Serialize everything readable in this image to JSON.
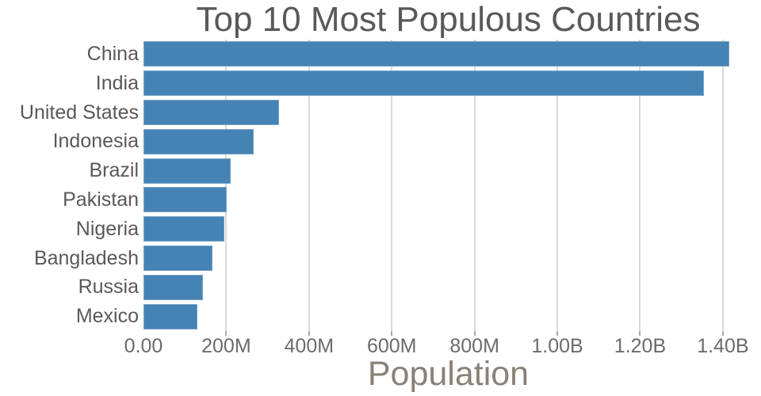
{
  "chart": {
    "title": "Top 10 Most Populous Countries",
    "xlabel": "Population",
    "colors": {
      "bar": "#4683b5",
      "gridline": "#d9d9d9",
      "title_text": "#58595a",
      "category_text": "#57595a",
      "tick_text": "#6b6b6b",
      "xlabel_text": "#8a8177",
      "background": "#ffffff"
    }
  },
  "chart_data": {
    "type": "bar",
    "orientation": "horizontal",
    "title": "Top 10 Most Populous Countries",
    "xlabel": "Population",
    "ylabel": "",
    "grid": true,
    "legend": false,
    "categories": [
      "China",
      "India",
      "United States",
      "Indonesia",
      "Brazil",
      "Pakistan",
      "Nigeria",
      "Bangladesh",
      "Russia",
      "Mexico"
    ],
    "values_millions": [
      1415.0,
      1354.1,
      326.8,
      266.8,
      210.9,
      200.8,
      195.9,
      166.4,
      144.0,
      130.8
    ],
    "xlim_millions": [
      0,
      1473
    ],
    "xticks": [
      {
        "value_millions": 0,
        "label": "0.00"
      },
      {
        "value_millions": 200,
        "label": "200M"
      },
      {
        "value_millions": 400,
        "label": "400M"
      },
      {
        "value_millions": 600,
        "label": "600M"
      },
      {
        "value_millions": 800,
        "label": "800M"
      },
      {
        "value_millions": 1000,
        "label": "1.00B"
      },
      {
        "value_millions": 1200,
        "label": "1.20B"
      },
      {
        "value_millions": 1400,
        "label": "1.40B"
      }
    ]
  }
}
